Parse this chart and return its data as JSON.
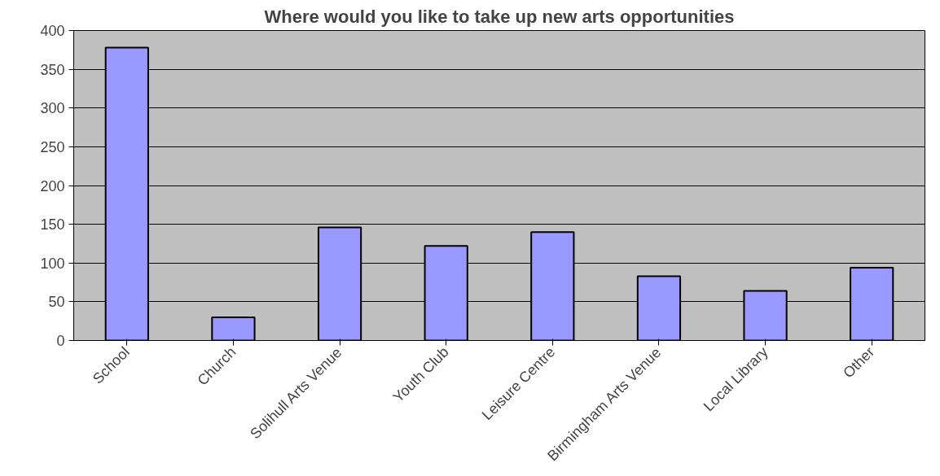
{
  "chart_data": {
    "type": "bar",
    "title": "Where would you like to take up new arts opportunities",
    "categories": [
      "School",
      "Church",
      "Solihull Arts Venue",
      "Youth Club",
      "Leisure Centre",
      "Birmingham Arts Venue",
      "Local Library",
      "Other"
    ],
    "values": [
      378,
      30,
      146,
      122,
      140,
      83,
      64,
      94
    ],
    "color": "#9999ff",
    "ylim": [
      0,
      400
    ],
    "yticks": [
      0,
      50,
      100,
      150,
      200,
      250,
      300,
      350,
      400
    ],
    "grid": "y"
  }
}
